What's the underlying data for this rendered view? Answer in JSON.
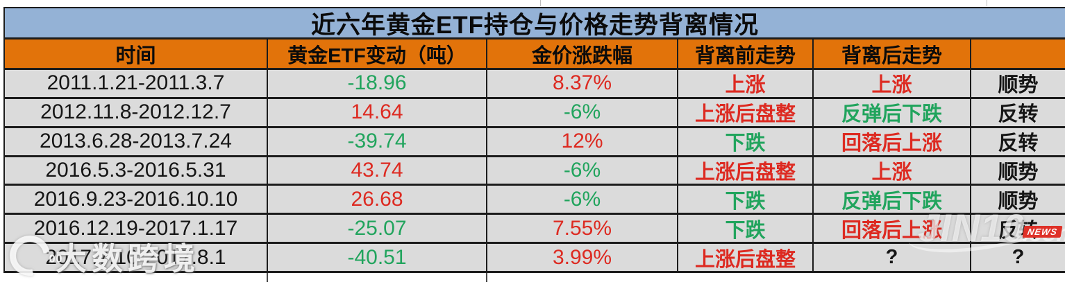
{
  "title": "近六年黄金ETF持仓与价格走势背离情况",
  "colors": {
    "title_bg": "#94b2d6",
    "header_bg": "#e2730a",
    "row_bg": "#dbdbdb",
    "border": "#1c1c1c",
    "red": "#dd2a21",
    "green": "#21a45d",
    "text": "#151515"
  },
  "chart_data": {
    "type": "table",
    "title": "近六年黄金ETF持仓与价格走势背离情况",
    "columns": [
      "时间",
      "黄金ETF变动（吨）",
      "金价涨跌幅",
      "背离前走势",
      "背离后走势",
      ""
    ],
    "rows": [
      {
        "time": "2011.1.21-2011.3.7",
        "etf": "-18.96",
        "etf_color": "green",
        "price": "8.37%",
        "price_color": "red",
        "before": "上涨",
        "before_color": "red",
        "after": "上涨",
        "after_color": "red",
        "result": "顺势",
        "result_color": "black"
      },
      {
        "time": "2012.11.8-2012.12.7",
        "etf": "14.64",
        "etf_color": "red",
        "price": "-6%",
        "price_color": "green",
        "before": "上涨后盘整",
        "before_color": "red",
        "after": "反弹后下跌",
        "after_color": "green",
        "result": "反转",
        "result_color": "black"
      },
      {
        "time": "2013.6.28-2013.7.24",
        "etf": "-39.74",
        "etf_color": "green",
        "price": "12%",
        "price_color": "red",
        "before": "下跌",
        "before_color": "green",
        "after": "回落后上涨",
        "after_color": "red",
        "result": "反转",
        "result_color": "black"
      },
      {
        "time": "2016.5.3-2016.5.31",
        "etf": "43.74",
        "etf_color": "red",
        "price": "-6%",
        "price_color": "green",
        "before": "上涨后盘整",
        "before_color": "red",
        "after": "上涨",
        "after_color": "red",
        "result": "顺势",
        "result_color": "black"
      },
      {
        "time": "2016.9.23-2016.10.10",
        "etf": "26.68",
        "etf_color": "red",
        "price": "-6%",
        "price_color": "green",
        "before": "下跌",
        "before_color": "green",
        "after": "反弹后下跌",
        "after_color": "green",
        "result": "顺势",
        "result_color": "black"
      },
      {
        "time": "2016.12.19-2017.1.17",
        "etf": "-25.07",
        "etf_color": "green",
        "price": "7.55%",
        "price_color": "red",
        "before": "下跌",
        "before_color": "green",
        "after": "回落后上涨",
        "after_color": "red",
        "result": "反转",
        "result_color": "black"
      },
      {
        "time": "2017.7.10-2017.8.1",
        "etf": "-40.51",
        "etf_color": "green",
        "price": "3.99%",
        "price_color": "red",
        "before": "上涨后盘整",
        "before_color": "red",
        "after": "?",
        "after_color": "black",
        "result": "?",
        "result_color": "black"
      }
    ]
  },
  "watermarks": {
    "left": {
      "logo_dots": "00",
      "text": "大数跨境"
    },
    "right": {
      "text": "JIN10",
      "suffix": ".com",
      "badge": "NEWS"
    }
  }
}
